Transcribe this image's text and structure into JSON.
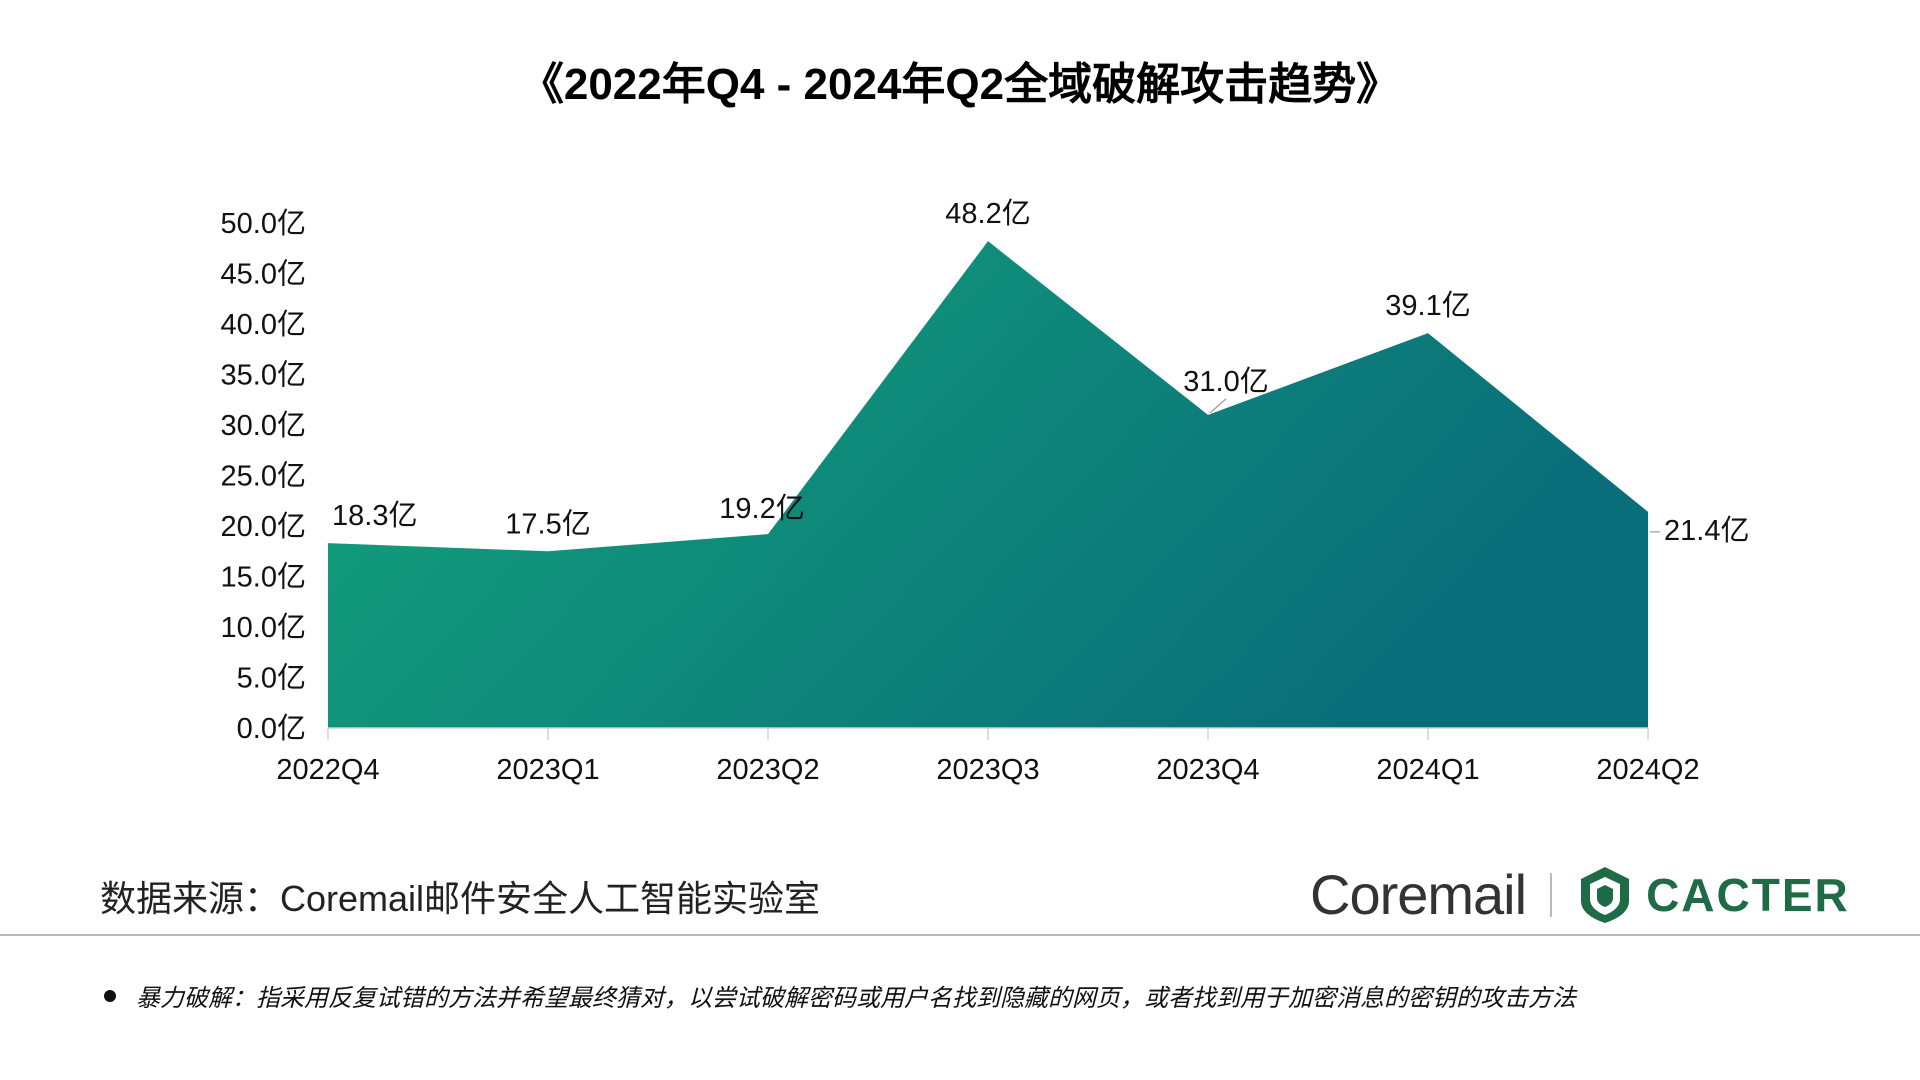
{
  "title": "《2022年Q4 - 2024年Q2全域破解攻击趋势》",
  "chart_data": {
    "type": "area",
    "title": "《2022年Q4 - 2024年Q2全域破解攻击趋势》",
    "categories": [
      "2022Q4",
      "2023Q1",
      "2023Q2",
      "2023Q3",
      "2023Q4",
      "2024Q1",
      "2024Q2"
    ],
    "values": [
      18.3,
      17.5,
      19.2,
      48.2,
      31.0,
      39.1,
      21.4
    ],
    "data_labels": [
      "18.3亿",
      "17.5亿",
      "19.2亿",
      "48.2亿",
      "31.0亿",
      "39.1亿",
      "21.4亿"
    ],
    "yticks": [
      "0.0亿",
      "5.0亿",
      "10.0亿",
      "15.0亿",
      "20.0亿",
      "25.0亿",
      "30.0亿",
      "35.0亿",
      "40.0亿",
      "45.0亿",
      "50.0亿"
    ],
    "ylim": [
      0,
      50
    ],
    "grid": false,
    "fill_gradient": [
      "#13a57a",
      "#0a6e7a"
    ]
  },
  "source": "数据来源：Coremail邮件安全人工智能实验室",
  "brand": {
    "coremail": "Coremail",
    "cacter": "CACTER"
  },
  "note": "暴力破解：指采用反复试错的方法并希望最终猜对，以尝试破解密码或用户名找到隐藏的网页，或者找到用于加密消息的密钥的攻击方法"
}
